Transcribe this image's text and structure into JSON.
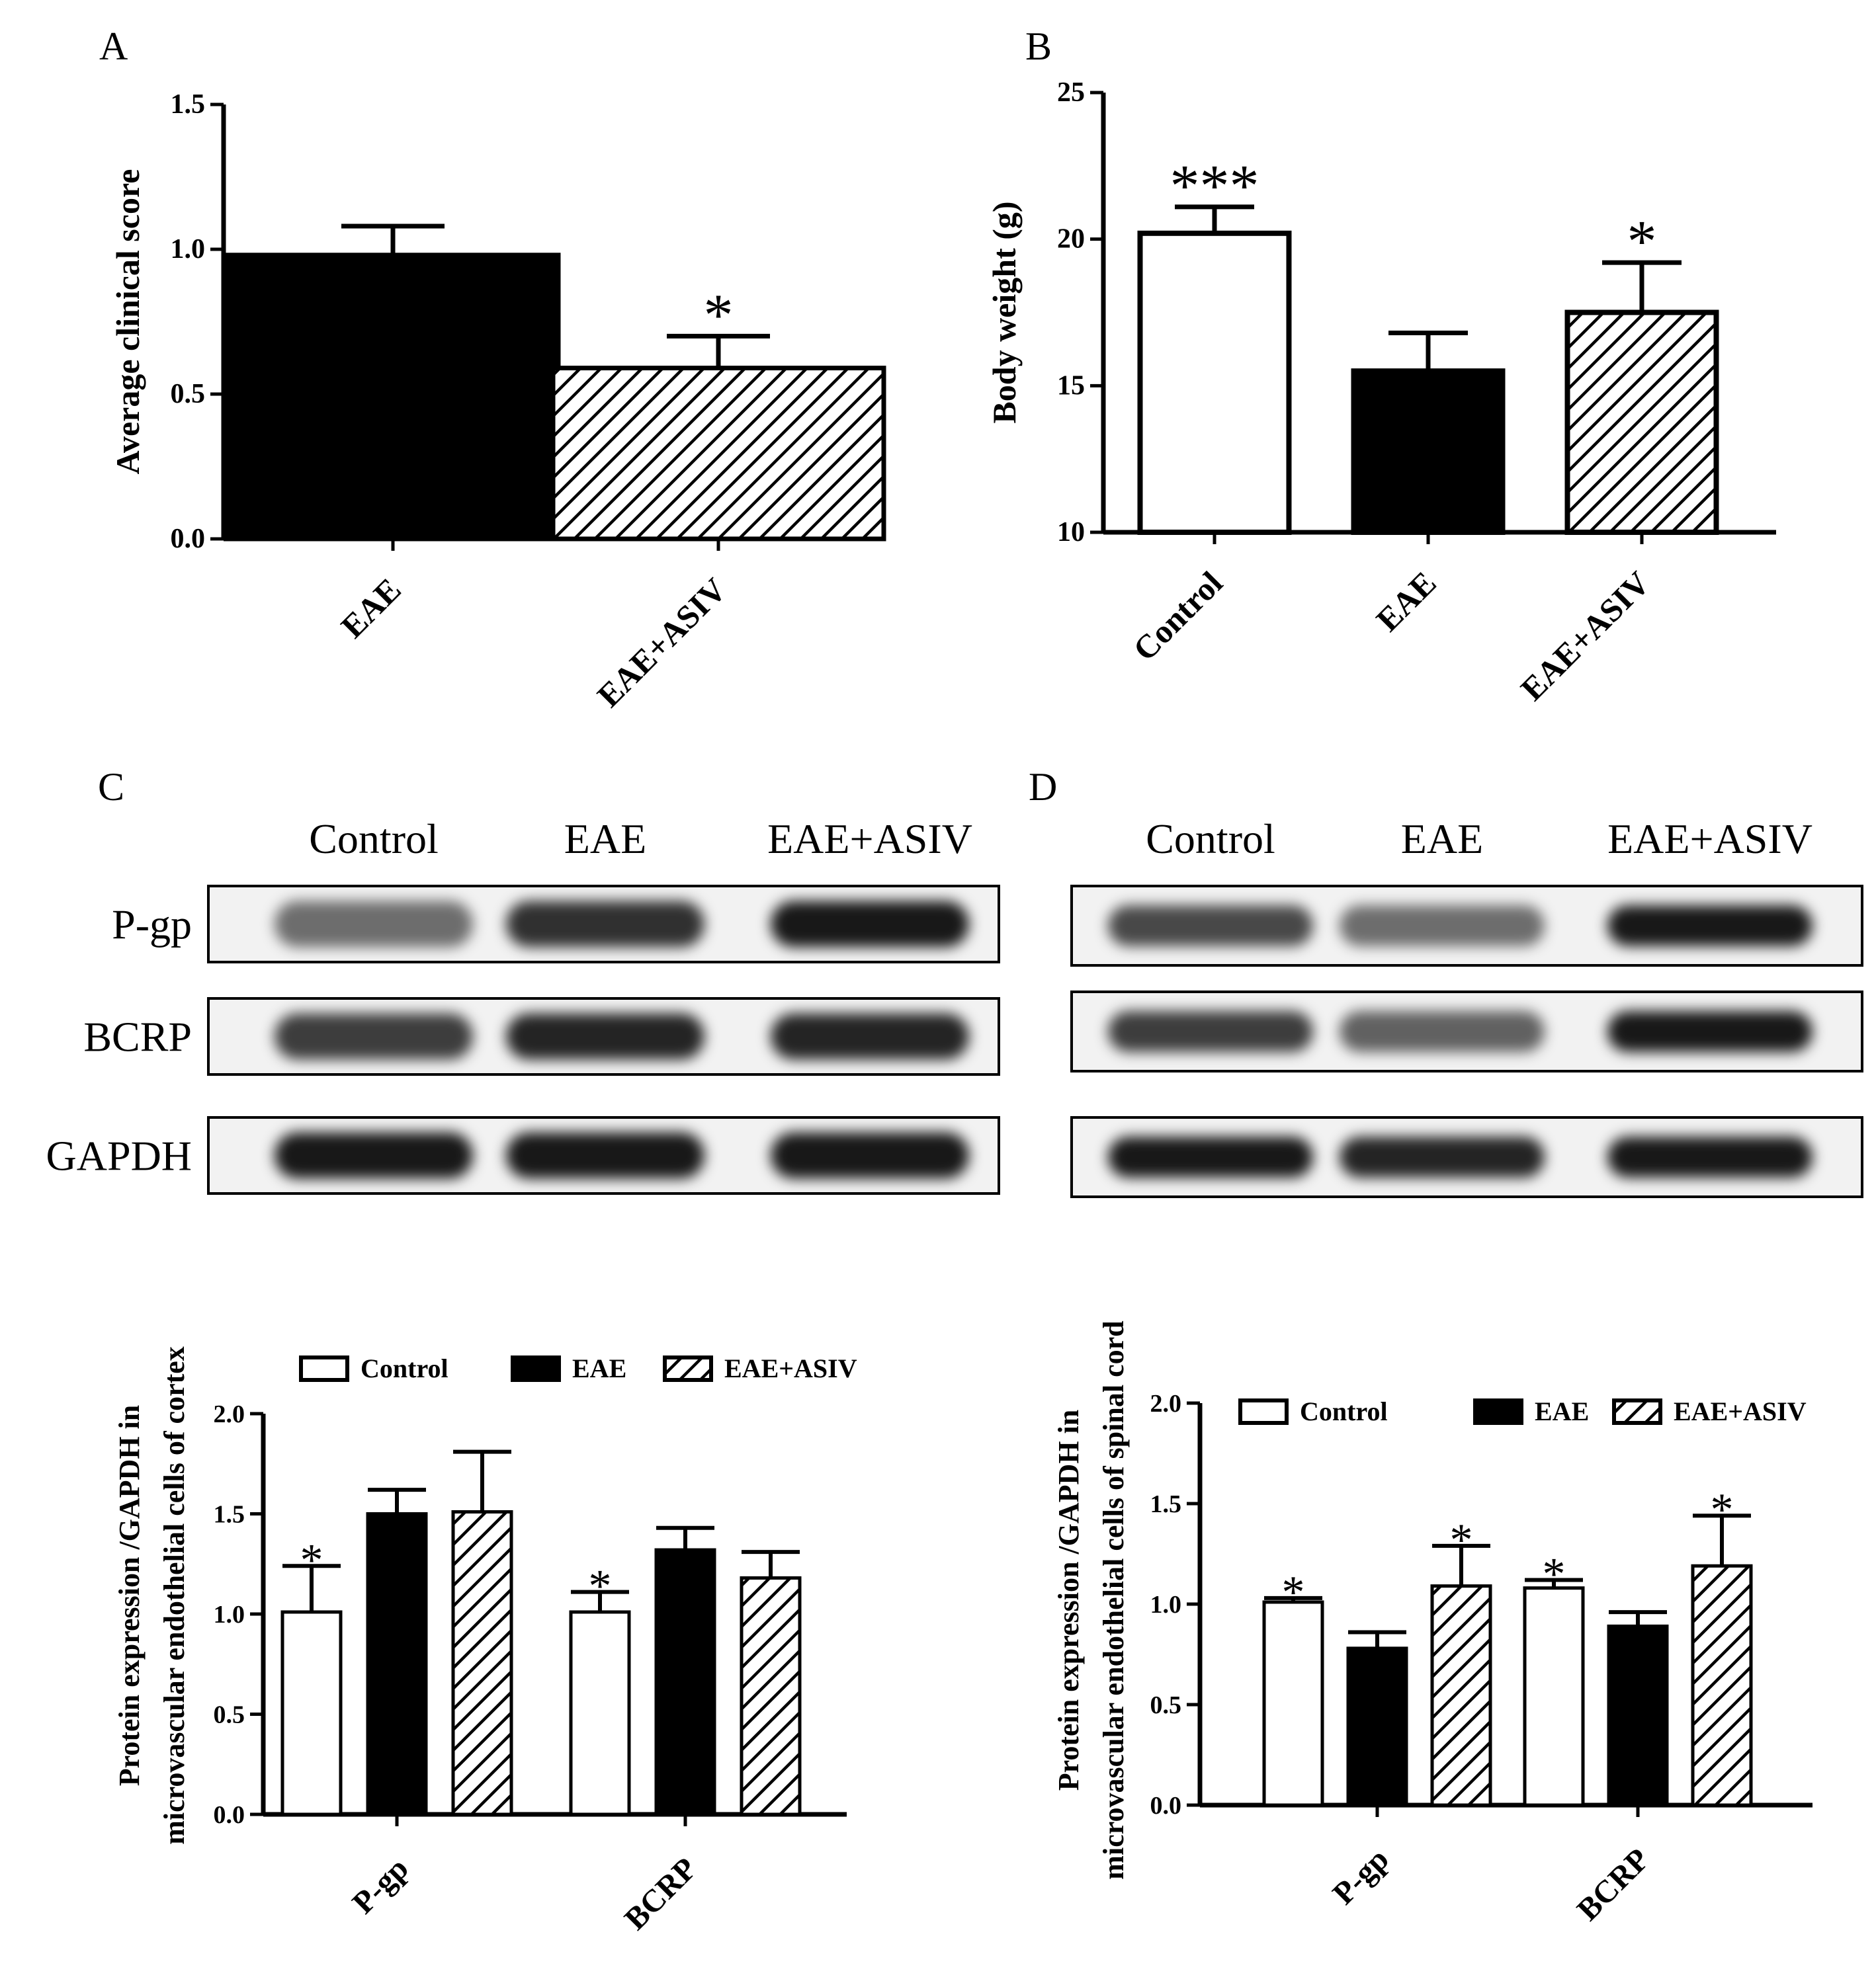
{
  "colors": {
    "ink": "#000000",
    "paper": "#ffffff",
    "band": "#1a1a1a",
    "blot_bg": "#f2f2f2"
  },
  "panels": {
    "A": "A",
    "B": "B",
    "C": "C",
    "D": "D"
  },
  "chart_data": [
    {
      "panel": "A",
      "type": "bar",
      "categories": [
        "EAE",
        "EAE+ASIV"
      ],
      "values": [
        0.98,
        0.59
      ],
      "errors": [
        0.1,
        0.11
      ],
      "fills": [
        "solid",
        "hatch"
      ],
      "ylabel": "Average clinical score",
      "ylim": [
        0,
        1.5
      ],
      "ticks": [
        0.0,
        0.5,
        1.0,
        1.5
      ],
      "tick_labels": [
        "0.0",
        "0.5",
        "1.0",
        "1.5"
      ],
      "significance": [
        "",
        "*"
      ]
    },
    {
      "panel": "B",
      "type": "bar",
      "categories": [
        "Control",
        "EAE",
        "EAE+ASIV"
      ],
      "values": [
        20.2,
        15.5,
        17.5
      ],
      "errors": [
        0.9,
        1.3,
        1.7
      ],
      "fills": [
        "open",
        "solid",
        "hatch"
      ],
      "ylabel": "Body weight (g)",
      "ylim": [
        10,
        25
      ],
      "ticks": [
        10,
        15,
        20,
        25
      ],
      "tick_labels": [
        "10",
        "15",
        "20",
        "25"
      ],
      "significance": [
        "***",
        "",
        "*"
      ]
    },
    {
      "panel": "C",
      "type": "bar",
      "categories": [
        "P-gp",
        "BCRP"
      ],
      "series": [
        {
          "name": "Control",
          "fill": "open",
          "values": [
            1.01,
            1.01
          ],
          "errors": [
            0.23,
            0.1
          ],
          "significance": [
            "*",
            "*"
          ]
        },
        {
          "name": "EAE",
          "fill": "solid",
          "values": [
            1.5,
            1.32
          ],
          "errors": [
            0.12,
            0.11
          ],
          "significance": [
            "",
            ""
          ]
        },
        {
          "name": "EAE+ASIV",
          "fill": "hatch",
          "values": [
            1.51,
            1.18
          ],
          "errors": [
            0.3,
            0.13
          ],
          "significance": [
            "",
            ""
          ]
        }
      ],
      "ylabel_lines": [
        "Protein expression /GAPDH in",
        "microvascular endothelial cells of cortex"
      ],
      "ylim": [
        0,
        2.0
      ],
      "ticks": [
        0.0,
        0.5,
        1.0,
        1.5,
        2.0
      ],
      "tick_labels": [
        "0.0",
        "0.5",
        "1.0",
        "1.5",
        "2.0"
      ],
      "legend": "top"
    },
    {
      "panel": "D",
      "type": "bar",
      "categories": [
        "P-gp",
        "BCRP"
      ],
      "series": [
        {
          "name": "Control",
          "fill": "open",
          "values": [
            1.01,
            1.08
          ],
          "errors": [
            0.02,
            0.04
          ],
          "significance": [
            "*",
            "*"
          ]
        },
        {
          "name": "EAE",
          "fill": "solid",
          "values": [
            0.78,
            0.89
          ],
          "errors": [
            0.08,
            0.07
          ],
          "significance": [
            "",
            ""
          ]
        },
        {
          "name": "EAE+ASIV",
          "fill": "hatch",
          "values": [
            1.09,
            1.19
          ],
          "errors": [
            0.2,
            0.25
          ],
          "significance": [
            "*",
            "*"
          ]
        }
      ],
      "ylabel_lines": [
        "Protein expression /GAPDH in",
        "microvascular endothelial cells of spinal cord"
      ],
      "ylim": [
        0,
        2.0
      ],
      "ticks": [
        0.0,
        0.5,
        1.0,
        1.5,
        2.0
      ],
      "tick_labels": [
        "0.0",
        "0.5",
        "1.0",
        "1.5",
        "2.0"
      ],
      "legend": "top"
    }
  ],
  "blots": {
    "C": {
      "lane_labels": [
        "Control",
        "EAE",
        "EAE+ASIV"
      ],
      "rows": [
        {
          "label": "P-gp",
          "intensity": [
            0.55,
            0.8,
            0.9
          ]
        },
        {
          "label": "BCRP",
          "intensity": [
            0.75,
            0.85,
            0.85
          ]
        },
        {
          "label": "GAPDH",
          "intensity": [
            0.9,
            0.9,
            0.9
          ]
        }
      ]
    },
    "D": {
      "lane_labels": [
        "Control",
        "EAE",
        "EAE+ASIV"
      ],
      "rows": [
        {
          "label": "",
          "intensity": [
            0.7,
            0.55,
            0.9
          ]
        },
        {
          "label": "",
          "intensity": [
            0.75,
            0.6,
            0.9
          ]
        },
        {
          "label": "",
          "intensity": [
            0.9,
            0.85,
            0.9
          ]
        }
      ]
    }
  }
}
